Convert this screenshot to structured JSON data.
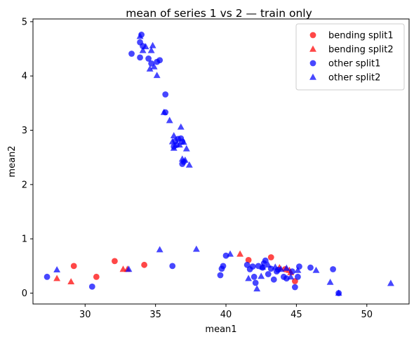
{
  "chart_data": {
    "type": "scatter",
    "title": "mean of series 1 vs 2 — train only",
    "xlabel": "mean1",
    "ylabel": "mean2",
    "xlim": [
      26.3,
      53.0
    ],
    "ylim": [
      -0.2,
      5.05
    ],
    "xticks": [
      30,
      35,
      40,
      45,
      50
    ],
    "yticks": [
      0,
      1,
      2,
      3,
      4,
      5
    ],
    "grid": false,
    "legend_position": "top-right",
    "series": [
      {
        "name": "bending split1",
        "color": "#ff0000",
        "marker": "circle",
        "points": [
          [
            29.2,
            0.5
          ],
          [
            30.8,
            0.3
          ],
          [
            32.1,
            0.59
          ],
          [
            34.2,
            0.52
          ],
          [
            41.6,
            0.61
          ],
          [
            43.2,
            0.66
          ],
          [
            44.2,
            0.44
          ],
          [
            44.9,
            0.22
          ]
        ]
      },
      {
        "name": "bending split2",
        "color": "#ff0000",
        "marker": "triangle",
        "points": [
          [
            28.0,
            0.27
          ],
          [
            29.0,
            0.21
          ],
          [
            32.7,
            0.44
          ],
          [
            33.0,
            0.44
          ],
          [
            41.0,
            0.72
          ],
          [
            43.8,
            0.47
          ],
          [
            44.5,
            0.42
          ],
          [
            44.6,
            0.38
          ]
        ]
      },
      {
        "name": "other split1",
        "color": "#0000ff",
        "marker": "circle",
        "points": [
          [
            27.3,
            0.3
          ],
          [
            30.5,
            0.12
          ],
          [
            36.2,
            0.5
          ],
          [
            33.3,
            4.41
          ],
          [
            33.9,
            4.62
          ],
          [
            34.0,
            4.76
          ],
          [
            34.1,
            4.55
          ],
          [
            33.9,
            4.34
          ],
          [
            34.5,
            4.32
          ],
          [
            34.7,
            4.23
          ],
          [
            35.1,
            4.26
          ],
          [
            35.3,
            4.29
          ],
          [
            35.7,
            3.66
          ],
          [
            35.7,
            3.33
          ],
          [
            36.4,
            2.8
          ],
          [
            36.6,
            2.84
          ],
          [
            36.8,
            2.85
          ],
          [
            36.9,
            2.79
          ],
          [
            36.3,
            2.7
          ],
          [
            36.5,
            2.73
          ],
          [
            36.9,
            2.38
          ],
          [
            37.0,
            2.42
          ],
          [
            39.6,
            0.33
          ],
          [
            39.7,
            0.45
          ],
          [
            39.8,
            0.5
          ],
          [
            40.0,
            0.69
          ],
          [
            41.5,
            0.52
          ],
          [
            41.7,
            0.44
          ],
          [
            41.9,
            0.49
          ],
          [
            42.0,
            0.3
          ],
          [
            42.1,
            0.19
          ],
          [
            42.3,
            0.5
          ],
          [
            42.6,
            0.47
          ],
          [
            42.7,
            0.55
          ],
          [
            42.8,
            0.6
          ],
          [
            43.0,
            0.35
          ],
          [
            43.2,
            0.45
          ],
          [
            43.4,
            0.25
          ],
          [
            43.6,
            0.4
          ],
          [
            43.7,
            0.43
          ],
          [
            44.1,
            0.3
          ],
          [
            44.3,
            0.27
          ],
          [
            44.7,
            0.4
          ],
          [
            44.9,
            0.11
          ],
          [
            45.1,
            0.3
          ],
          [
            45.2,
            0.49
          ],
          [
            46.0,
            0.47
          ],
          [
            47.6,
            0.44
          ],
          [
            48.0,
            0.0
          ]
        ]
      },
      {
        "name": "other split2",
        "color": "#0000ff",
        "marker": "triangle",
        "points": [
          [
            28.0,
            0.43
          ],
          [
            33.1,
            0.44
          ],
          [
            33.9,
            4.73
          ],
          [
            34.1,
            4.47
          ],
          [
            34.3,
            4.54
          ],
          [
            34.7,
            4.47
          ],
          [
            34.8,
            4.56
          ],
          [
            34.6,
            4.13
          ],
          [
            34.9,
            4.17
          ],
          [
            35.1,
            4.01
          ],
          [
            35.6,
            3.33
          ],
          [
            36.0,
            3.18
          ],
          [
            36.3,
            2.9
          ],
          [
            36.2,
            2.79
          ],
          [
            36.3,
            2.67
          ],
          [
            36.7,
            2.73
          ],
          [
            36.8,
            3.06
          ],
          [
            37.0,
            2.78
          ],
          [
            37.2,
            2.66
          ],
          [
            36.9,
            2.47
          ],
          [
            37.1,
            2.45
          ],
          [
            37.4,
            2.36
          ],
          [
            35.3,
            0.8
          ],
          [
            37.9,
            0.81
          ],
          [
            40.3,
            0.72
          ],
          [
            41.6,
            0.27
          ],
          [
            42.2,
            0.08
          ],
          [
            42.5,
            0.31
          ],
          [
            42.6,
            0.48
          ],
          [
            43.0,
            0.52
          ],
          [
            43.5,
            0.48
          ],
          [
            43.9,
            0.44
          ],
          [
            44.3,
            0.46
          ],
          [
            44.6,
            0.3
          ],
          [
            45.1,
            0.42
          ],
          [
            46.4,
            0.42
          ],
          [
            47.4,
            0.2
          ],
          [
            48.0,
            0.0
          ],
          [
            51.7,
            0.18
          ]
        ]
      }
    ]
  }
}
